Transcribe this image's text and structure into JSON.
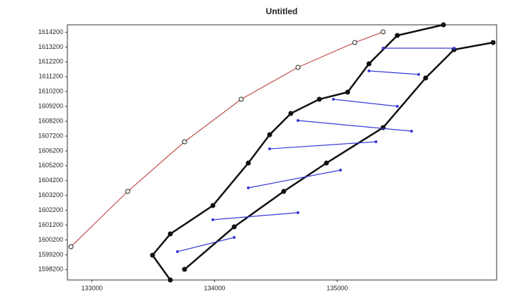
{
  "chart_data": {
    "type": "line",
    "title": "Untitled",
    "xlim": [
      132800,
      136300
    ],
    "ylim": [
      1597500,
      1614700
    ],
    "xticks": [
      133000,
      134000,
      135000
    ],
    "yticks": [
      1614200,
      1613200,
      1612200,
      1611200,
      1610200,
      1609200,
      1608200,
      1607200,
      1606200,
      1605200,
      1604200,
      1603200,
      1602200,
      1601200,
      1600200,
      1599200,
      1598200
    ],
    "grid": false,
    "series": [
      {
        "color": "#c0504d",
        "marker": "open",
        "x": [
          132829,
          133292,
          133755,
          134217,
          134680,
          135143,
          135374
        ],
        "values": [
          1599745,
          1603472,
          1606816,
          1609683,
          1611833,
          1613506,
          1614222
        ]
      },
      {
        "color": "#111111",
        "marker": "filled",
        "x": [
          133639,
          133494,
          133639,
          133986,
          134275,
          134449,
          134622,
          134854,
          135085,
          135259,
          135490,
          135866
        ],
        "values": [
          1597500,
          1599172,
          1600605,
          1602516,
          1605383,
          1607294,
          1608728,
          1609683,
          1610161,
          1612072,
          1613983,
          1614700
        ]
      },
      {
        "color": "#111111",
        "marker": "filled",
        "x": [
          133755,
          134160,
          134564,
          134912,
          135374,
          135721,
          135953,
          136271
        ],
        "values": [
          1598216,
          1601083,
          1603472,
          1605383,
          1607772,
          1611117,
          1613028,
          1613506
        ]
      },
      {
        "color": "#3a3ad8",
        "marker": "small",
        "x": [
          133697,
          134160,
          null,
          133986,
          134680,
          null,
          134275,
          135027,
          null,
          134449,
          135316,
          null,
          134680,
          135606,
          null,
          134969,
          135490,
          null,
          135259,
          135664,
          null,
          135374,
          135953
        ],
        "values": [
          1599410,
          1600366,
          null,
          1601561,
          1602039,
          null,
          1603711,
          1604906,
          null,
          1606338,
          1606816,
          null,
          1608250,
          1607533,
          null,
          1609683,
          1609205,
          null,
          1611594,
          1611355,
          null,
          1613123,
          1613123
        ]
      }
    ]
  }
}
